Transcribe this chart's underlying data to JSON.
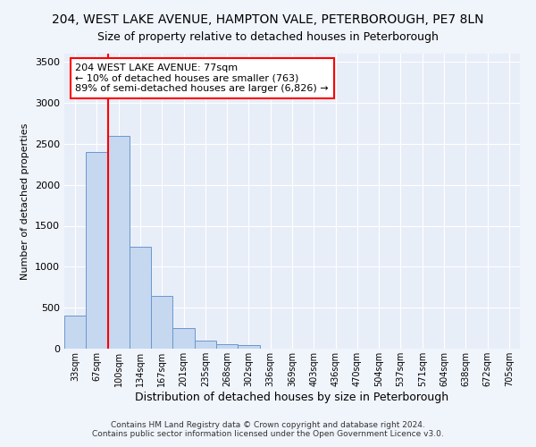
{
  "title_line1": "204, WEST LAKE AVENUE, HAMPTON VALE, PETERBOROUGH, PE7 8LN",
  "title_line2": "Size of property relative to detached houses in Peterborough",
  "xlabel": "Distribution of detached houses by size in Peterborough",
  "ylabel": "Number of detached properties",
  "footnote1": "Contains HM Land Registry data © Crown copyright and database right 2024.",
  "footnote2": "Contains public sector information licensed under the Open Government Licence v3.0.",
  "categories": [
    "33sqm",
    "67sqm",
    "100sqm",
    "134sqm",
    "167sqm",
    "201sqm",
    "235sqm",
    "268sqm",
    "302sqm",
    "336sqm",
    "369sqm",
    "403sqm",
    "436sqm",
    "470sqm",
    "504sqm",
    "537sqm",
    "571sqm",
    "604sqm",
    "638sqm",
    "672sqm",
    "705sqm"
  ],
  "values": [
    400,
    2400,
    2600,
    1240,
    640,
    250,
    100,
    50,
    45,
    0,
    0,
    0,
    0,
    0,
    0,
    0,
    0,
    0,
    0,
    0,
    0
  ],
  "bar_color": "#c5d8f0",
  "bar_edge_color": "#6b96cc",
  "vline_color": "red",
  "vline_x_index": 1,
  "annotation_text": "204 WEST LAKE AVENUE: 77sqm\n← 10% of detached houses are smaller (763)\n89% of semi-detached houses are larger (6,826) →",
  "annotation_box_color": "white",
  "annotation_box_edge_color": "red",
  "ylim": [
    0,
    3600
  ],
  "yticks": [
    0,
    500,
    1000,
    1500,
    2000,
    2500,
    3000,
    3500
  ],
  "background_color": "#f0f4fb",
  "plot_bg_color": "#e8eef8",
  "grid_color": "#ffffff",
  "title1_fontsize": 10,
  "title2_fontsize": 9,
  "xlabel_fontsize": 9,
  "ylabel_fontsize": 8,
  "tick_fontsize": 7,
  "footnote_fontsize": 6.5
}
